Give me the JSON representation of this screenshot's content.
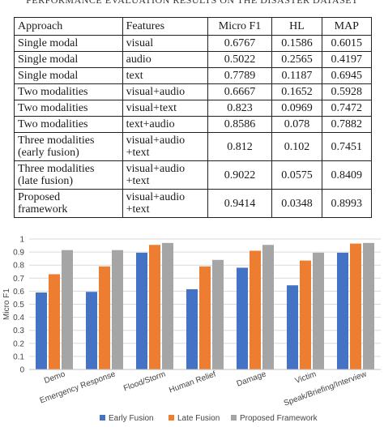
{
  "caption_fragment": "PERFORMANCE EVALUATION RESULTS ON THE DISASTER DATASET",
  "table": {
    "headers": [
      "Approach",
      "Features",
      "Micro F1",
      "HL",
      "MAP"
    ],
    "rows": [
      {
        "approach": [
          "Single modal"
        ],
        "features": [
          "visual"
        ],
        "micro_f1": "0.6767",
        "hl": "0.1586",
        "map": "0.6015"
      },
      {
        "approach": [
          "Single modal"
        ],
        "features": [
          "audio"
        ],
        "micro_f1": "0.5022",
        "hl": "0.2565",
        "map": "0.4197"
      },
      {
        "approach": [
          "Single modal"
        ],
        "features": [
          "text"
        ],
        "micro_f1": "0.7789",
        "hl": "0.1187",
        "map": "0.6945"
      },
      {
        "approach": [
          "Two modalities"
        ],
        "features": [
          "visual+audio"
        ],
        "micro_f1": "0.6667",
        "hl": "0.1652",
        "map": "0.5928"
      },
      {
        "approach": [
          "Two modalities"
        ],
        "features": [
          "visual+text"
        ],
        "micro_f1": "0.823",
        "hl": "0.0969",
        "map": "0.7472"
      },
      {
        "approach": [
          "Two modalities"
        ],
        "features": [
          "text+audio"
        ],
        "micro_f1": "0.8586",
        "hl": "0.078",
        "map": "0.7882"
      },
      {
        "approach": [
          "Three modalities",
          "(early fusion)"
        ],
        "features": [
          "visual+audio",
          "+text"
        ],
        "micro_f1": "0.812",
        "hl": "0.102",
        "map": "0.7451"
      },
      {
        "approach": [
          "Three modalities",
          "(late fusion)"
        ],
        "features": [
          "visual+audio",
          "+text"
        ],
        "micro_f1": "0.9022",
        "hl": "0.0575",
        "map": "0.8409"
      },
      {
        "approach": [
          "Proposed",
          "framework"
        ],
        "features": [
          "visual+audio",
          "+text"
        ],
        "micro_f1": "0.9414",
        "hl": "0.0348",
        "map": "0.8993"
      }
    ]
  },
  "chart_data": {
    "type": "bar",
    "title": "",
    "xlabel": "",
    "ylabel": "Micro F1",
    "ylim": [
      0,
      1
    ],
    "yticks": [
      "0",
      "0.1",
      "0.2",
      "0.3",
      "0.4",
      "0.5",
      "0.6",
      "0.7",
      "0.8",
      "0.9",
      "1"
    ],
    "grid": true,
    "legend_position": "bottom",
    "categories": [
      "Demo",
      "Emergency Response",
      "Flood/Storm",
      "Human Relief",
      "Damage",
      "Victim",
      "Speak/Briefing/Interview"
    ],
    "series": [
      {
        "name": "Early Fusion",
        "color": "#4472c4",
        "values": [
          0.59,
          0.595,
          0.895,
          0.615,
          0.78,
          0.645,
          0.895
        ]
      },
      {
        "name": "Late Fusion",
        "color": "#ed7d31",
        "values": [
          0.73,
          0.79,
          0.955,
          0.79,
          0.91,
          0.835,
          0.965
        ]
      },
      {
        "name": "Proposed Framework",
        "color": "#a5a5a5",
        "values": [
          0.915,
          0.915,
          0.97,
          0.84,
          0.955,
          0.895,
          0.97
        ]
      }
    ]
  }
}
